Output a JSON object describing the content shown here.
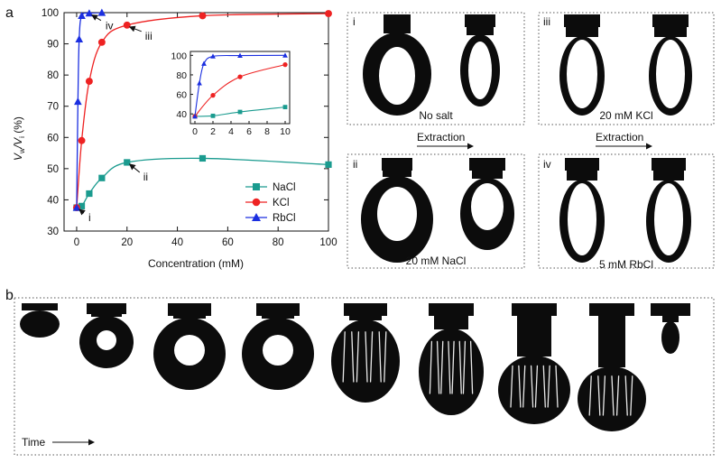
{
  "panels": {
    "a": "a",
    "b": "b"
  },
  "chart_data": {
    "type": "line",
    "xlabel": "Concentration (mM)",
    "ylabel": "Vw/Vi (%)",
    "ylabel_main": "V",
    "ylabel_sub1": "w",
    "ylabel_mid": "/V",
    "ylabel_sub2": "i",
    "ylabel_tail": " (%)",
    "xlim": [
      -5,
      100
    ],
    "ylim": [
      30,
      100
    ],
    "xticks": [
      0,
      20,
      40,
      60,
      80,
      100
    ],
    "yticks": [
      30,
      40,
      50,
      60,
      70,
      80,
      90,
      100
    ],
    "legend_position": "lower-right",
    "series": [
      {
        "name": "NaCl",
        "color": "#1a9b8f",
        "marker": "square",
        "x": [
          0,
          2,
          5,
          10,
          20,
          50,
          100
        ],
        "y": [
          37.5,
          38,
          42,
          47,
          52,
          53.3,
          51.3
        ]
      },
      {
        "name": "KCl",
        "color": "#ee2222",
        "marker": "circle",
        "x": [
          0,
          2,
          5,
          10,
          20,
          50,
          100
        ],
        "y": [
          37.5,
          59,
          78,
          90.5,
          96,
          99,
          99.7
        ]
      },
      {
        "name": "RbCl",
        "color": "#1b2fe0",
        "marker": "triangle",
        "x": [
          0,
          0.5,
          1,
          2,
          5,
          10
        ],
        "y": [
          37.5,
          71.5,
          91.5,
          99,
          99.8,
          100
        ]
      }
    ],
    "annotations": [
      {
        "label": "i",
        "x": 0,
        "y": 37.5
      },
      {
        "label": "ii",
        "x": 20,
        "y": 52
      },
      {
        "label": "iii",
        "x": 20,
        "y": 96
      },
      {
        "label": "iv",
        "x": 5,
        "y": 99.8
      }
    ],
    "inset": {
      "xlim": [
        -0.5,
        10.5
      ],
      "ylim": [
        30,
        104
      ],
      "xticks": [
        0,
        2,
        4,
        6,
        8,
        10
      ],
      "yticks": [
        40,
        60,
        80,
        100
      ]
    }
  },
  "photos": {
    "boxes": [
      {
        "roman": "i",
        "caption": "No salt"
      },
      {
        "roman": "iii",
        "caption": "20 mM KCl"
      },
      {
        "roman": "ii",
        "caption": "20 mM NaCl"
      },
      {
        "roman": "iv",
        "caption": "5 mM RbCl"
      }
    ],
    "extraction_label": "Extraction",
    "time_label": "Time"
  }
}
